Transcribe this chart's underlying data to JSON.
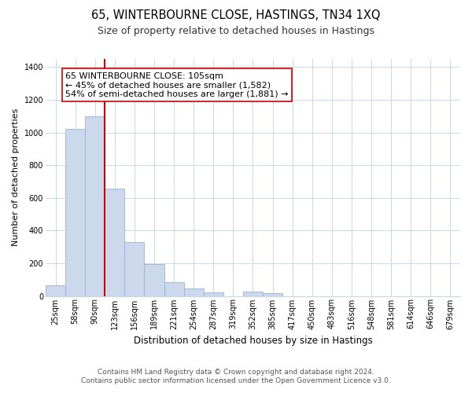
{
  "title": "65, WINTERBOURNE CLOSE, HASTINGS, TN34 1XQ",
  "subtitle": "Size of property relative to detached houses in Hastings",
  "xlabel": "Distribution of detached houses by size in Hastings",
  "ylabel": "Number of detached properties",
  "categories": [
    "25sqm",
    "58sqm",
    "90sqm",
    "123sqm",
    "156sqm",
    "189sqm",
    "221sqm",
    "254sqm",
    "287sqm",
    "319sqm",
    "352sqm",
    "385sqm",
    "417sqm",
    "450sqm",
    "483sqm",
    "516sqm",
    "548sqm",
    "581sqm",
    "614sqm",
    "646sqm",
    "679sqm"
  ],
  "values": [
    65,
    1020,
    1100,
    655,
    330,
    193,
    85,
    48,
    20,
    0,
    25,
    15,
    0,
    0,
    0,
    0,
    0,
    0,
    0,
    0,
    0
  ],
  "bar_color": "#ccd9ec",
  "bar_edge_color": "#9ab3d0",
  "vline_color": "#cc0000",
  "annotation_text": "65 WINTERBOURNE CLOSE: 105sqm\n← 45% of detached houses are smaller (1,582)\n54% of semi-detached houses are larger (1,881) →",
  "annotation_box_color": "white",
  "annotation_box_edge_color": "#cc0000",
  "ylim": [
    0,
    1450
  ],
  "yticks": [
    0,
    200,
    400,
    600,
    800,
    1000,
    1200,
    1400
  ],
  "grid_color": "#c8d8e8",
  "footer1": "Contains HM Land Registry data © Crown copyright and database right 2024.",
  "footer2": "Contains public sector information licensed under the Open Government Licence v3.0.",
  "title_fontsize": 10.5,
  "subtitle_fontsize": 9,
  "xlabel_fontsize": 8.5,
  "ylabel_fontsize": 8,
  "tick_fontsize": 7,
  "annotation_fontsize": 8,
  "footer_fontsize": 6.5
}
